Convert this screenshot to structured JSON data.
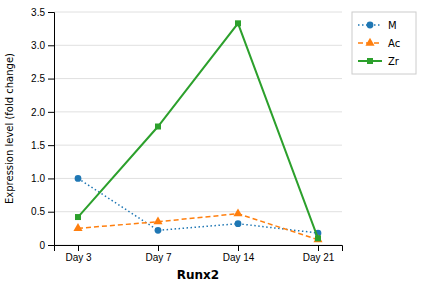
{
  "chart_data": {
    "type": "line",
    "x_label": "Runx2",
    "y_label": "Expression level (fold change)",
    "categories": [
      "Day 3",
      "Day 7",
      "Day 14",
      "Day 21"
    ],
    "series": [
      {
        "name": "M",
        "values": [
          1.0,
          0.22,
          0.32,
          0.18
        ],
        "marker": "circle",
        "line_style": "dotted"
      },
      {
        "name": "Ac",
        "values": [
          0.25,
          0.35,
          0.47,
          0.08
        ],
        "marker": "triangle",
        "line_style": "dashed"
      },
      {
        "name": "Zr",
        "values": [
          0.42,
          1.78,
          3.33,
          0.1
        ],
        "marker": "square",
        "line_style": "solid"
      }
    ],
    "ylim": [
      0,
      3.5
    ],
    "yticks": [
      0,
      0.5,
      {
        "value": 1.0,
        "label": "1.0"
      },
      1.5,
      {
        "value": 2.0,
        "label": "2.0"
      },
      2.5,
      {
        "value": 3.0,
        "label": "3.0"
      },
      3.5
    ],
    "grid": true,
    "legend": "right"
  }
}
